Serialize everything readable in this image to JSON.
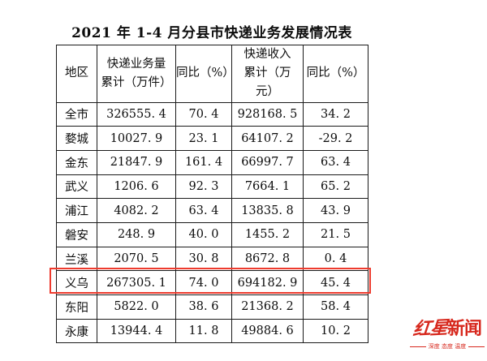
{
  "title": "2021 年 1-4 月分县市快递业务发展情况表",
  "colors": {
    "highlight_box": "#ee3b2e",
    "logo_red": "#d7281d",
    "table_border": "#1a1a1a"
  },
  "table": {
    "headers": {
      "region": "地区",
      "volume": "快递业务量\n累计（万件）",
      "volume_yoy": "同比（%）",
      "revenue": "快递收入\n累计（万\n元）",
      "revenue_yoy": "同比（%）"
    },
    "rows": [
      {
        "region": "全市",
        "volume": "326555. 4",
        "volume_yoy": "70. 4",
        "revenue": "928168. 5",
        "revenue_yoy": "34. 2",
        "highlighted": false
      },
      {
        "region": "婺城",
        "volume": "10027. 9",
        "volume_yoy": "23. 1",
        "revenue": "64107. 2",
        "revenue_yoy": "-29. 2",
        "highlighted": false
      },
      {
        "region": "金东",
        "volume": "21847. 9",
        "volume_yoy": "161. 4",
        "revenue": "66997. 7",
        "revenue_yoy": "63. 4",
        "highlighted": false
      },
      {
        "region": "武义",
        "volume": "1206. 6",
        "volume_yoy": "92. 3",
        "revenue": "7664. 1",
        "revenue_yoy": "65. 2",
        "highlighted": false
      },
      {
        "region": "浦江",
        "volume": "4082. 2",
        "volume_yoy": "63. 4",
        "revenue": "13835. 8",
        "revenue_yoy": "43. 9",
        "highlighted": false
      },
      {
        "region": "磐安",
        "volume": "248. 9",
        "volume_yoy": "40. 0",
        "revenue": "1455. 2",
        "revenue_yoy": "21. 5",
        "highlighted": false
      },
      {
        "region": "兰溪",
        "volume": "2070. 5",
        "volume_yoy": "30. 8",
        "revenue": "8672. 8",
        "revenue_yoy": "0. 4",
        "highlighted": false
      },
      {
        "region": "义乌",
        "volume": "267305. 1",
        "volume_yoy": "74. 0",
        "revenue": "694182. 9",
        "revenue_yoy": "45. 4",
        "highlighted": true
      },
      {
        "region": "东阳",
        "volume": "5822. 0",
        "volume_yoy": "38. 6",
        "revenue": "21368. 2",
        "revenue_yoy": "58. 4",
        "highlighted": false
      },
      {
        "region": "永康",
        "volume": "13944. 4",
        "volume_yoy": "11. 8",
        "revenue": "49884. 6",
        "revenue_yoy": "10. 2",
        "highlighted": false
      }
    ]
  },
  "logo": {
    "part1": "红星",
    "part2": "新闻",
    "tagline": "深度 态度 温度"
  }
}
